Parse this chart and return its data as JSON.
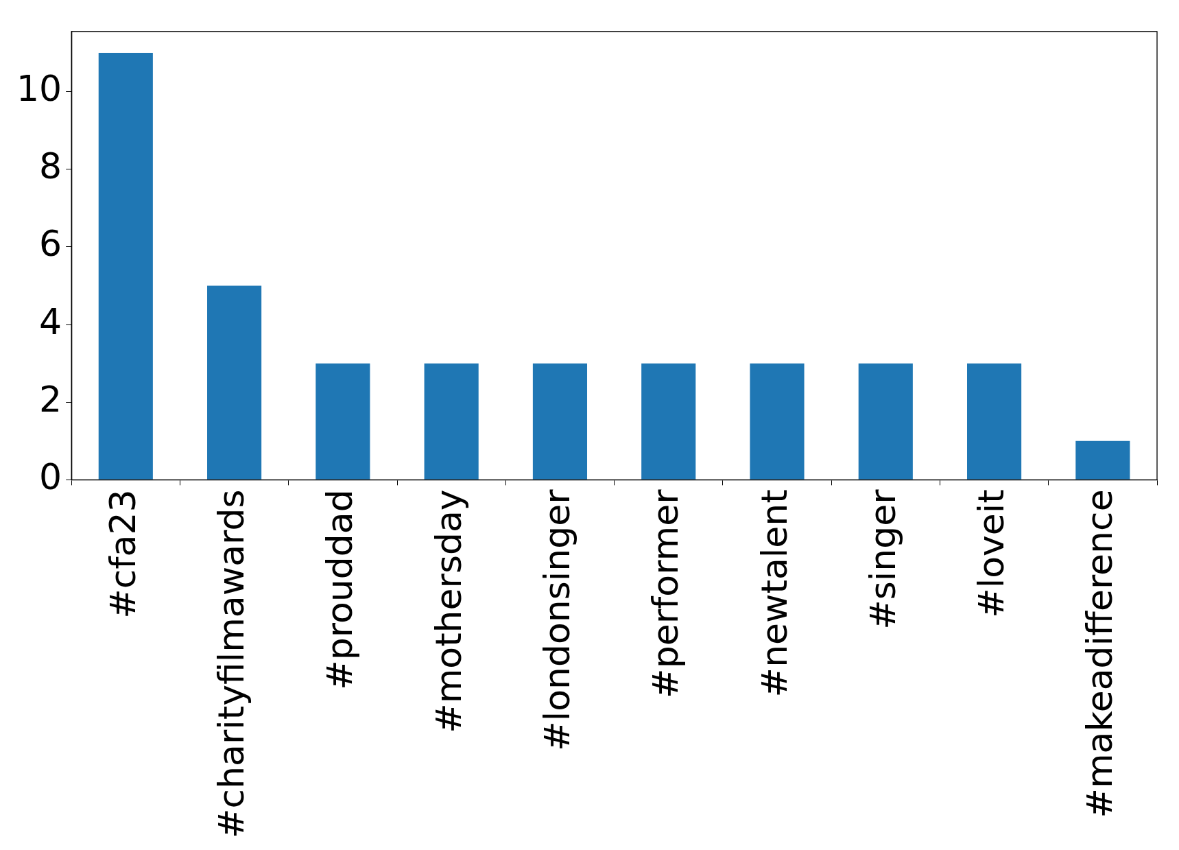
{
  "chart_data": {
    "type": "bar",
    "categories": [
      "#cfa23",
      "#charityfilmawards",
      "#prouddad",
      "#mothersday",
      "#londonsinger",
      "#performer",
      "#newtalent",
      "#singer",
      "#loveit",
      "#makeadifference"
    ],
    "values": [
      11,
      5,
      3,
      3,
      3,
      3,
      3,
      3,
      3,
      1
    ],
    "color": "#1f77b4",
    "ylim": [
      0,
      11.55
    ],
    "yticks": [
      0,
      2,
      4,
      6,
      8,
      10
    ],
    "grid": false,
    "legend": false
  }
}
